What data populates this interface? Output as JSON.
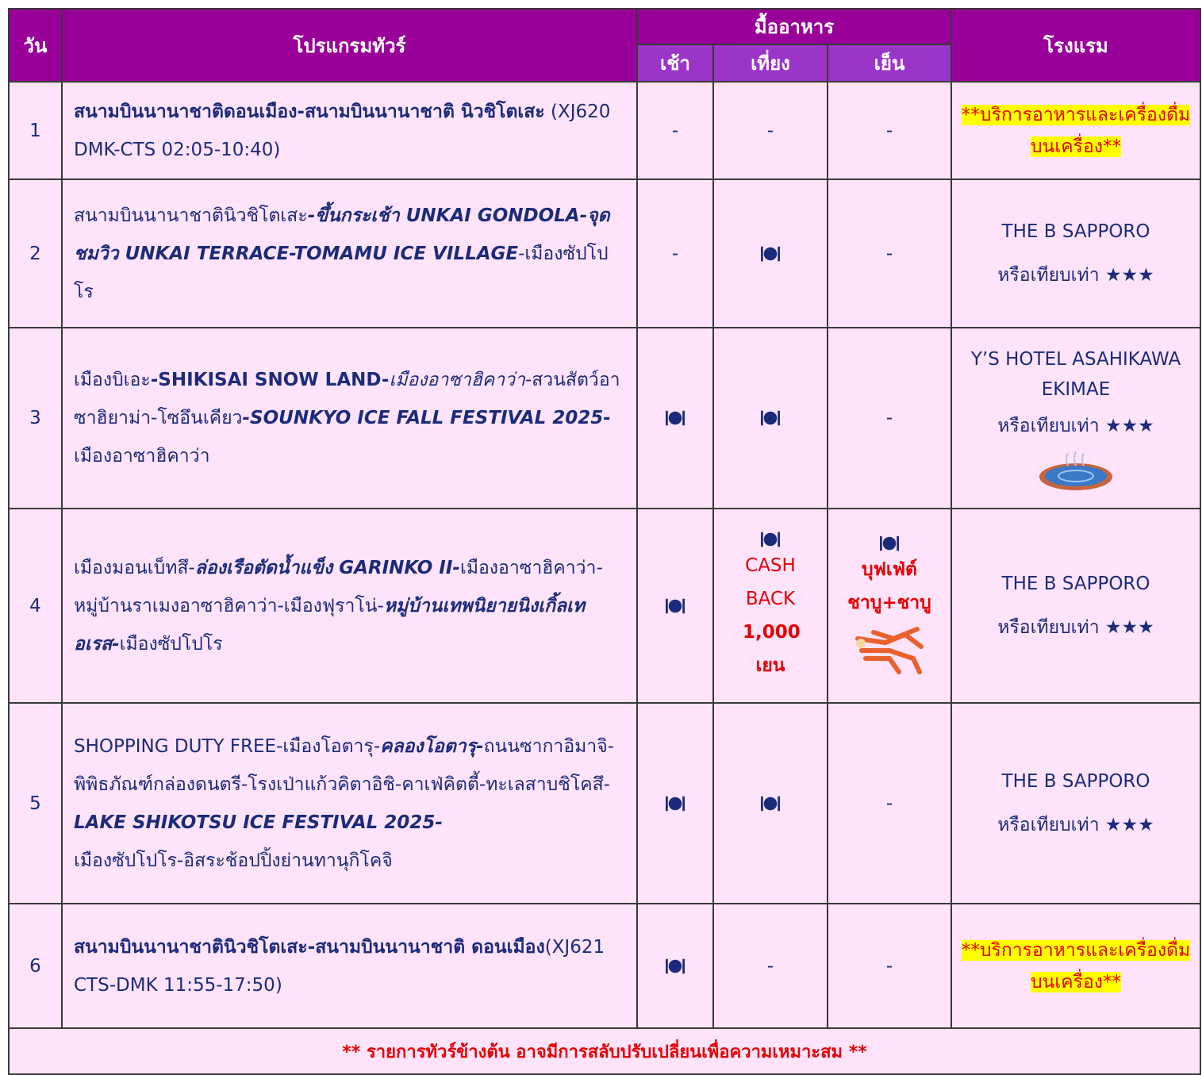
{
  "table": {
    "header": {
      "day": "วัน",
      "program": "โปรแกรมทัวร์",
      "meals": "มื้ออาหาร",
      "breakfast": "เช้า",
      "lunch": "เที่ยง",
      "dinner": "เย็น",
      "hotel": "โรงแรม"
    },
    "rows": [
      {
        "day": "1",
        "program": [
          "สนามบินนานาชาติดอนเมือง-สนามบินนานาชาติ นิวชิโตเสะ",
          " (XJ620 DMK-CTS 02:05-10:40)"
        ],
        "meals": {
          "breakfast": "-",
          "lunch": "-",
          "dinner": "-"
        },
        "hotel": [
          "**บริการอาหารและเครื่องดื่มบนเครื่อง**"
        ]
      },
      {
        "day": "2",
        "program": [
          "สนามบินนานาชาตินิวชิโตเสะ",
          "-ขึ้นกระเช้า UNKAI GONDOLA-จุดชมวิว UNKAI TERRACE-TOMAMU ICE VILLAGE",
          "-เมืองซัปโปโร"
        ],
        "meals": {
          "breakfast": "-",
          "dinner": "-"
        },
        "hotel": [
          "THE B SAPPORO",
          "หรือเทียบเท่า ★★★"
        ]
      },
      {
        "day": "3",
        "program": [
          "เมืองบิเอะ",
          "-SHIKISAI SNOW LAND-",
          "เมืองอาซาฮิคาว่า",
          "-สวนสัตว์อาซาฮิยาม่า-โซอึนเคียว",
          "-SOUNKYO ICE FALL FESTIVAL 2025-",
          "เมืองอาซาฮิคาว่า"
        ],
        "meals": {
          "dinner": "-"
        },
        "hotel": [
          "Y’S HOTEL ASAHIKAWA EKIMAE",
          "หรือเทียบเท่า ★★★"
        ]
      },
      {
        "day": "4",
        "program": [
          "เมืองมอนเบ็ทสึ-",
          "ล่องเรือตัดน้ำแข็ง GARINKO II-",
          "เมืองอาซาฮิคาว่า-หมู่บ้านราเมงอาซาฮิคาว่า-เมืองฟุราโน่-",
          "หมู่บ้านเทพนิยายนิงเกิ้ลเทอเรส-",
          "เมืองซัปโปโร"
        ],
        "meals": {
          "lunch": [
            "CASH BACK",
            "1,000 เยน"
          ],
          "dinner": [
            "บุฟเฟ่ต์ ชาบู+ชาบู"
          ]
        },
        "hotel": [
          "THE B SAPPORO",
          "หรือเทียบเท่า ★★★"
        ]
      },
      {
        "day": "5",
        "program": [
          "SHOPPING DUTY FREE-เมืองโอตารุ-",
          "คลองโอตารุ-",
          "ถนนซากาอิมาจิ-พิพิธภัณฑ์กล่องดนตรี-โรงเป่าแก้วคิตาอิชิ-คาเฟ่คิตตี้-ทะเลสาบชิโคสึ-",
          "LAKE SHIKOTSU ICE FESTIVAL 2025-",
          "เมืองซัปโปโร-อิสระช้อปปิ้งย่านทานุกิโคจิ"
        ],
        "meals": {
          "dinner": "-"
        },
        "hotel": [
          "THE B SAPPORO",
          "หรือเทียบเท่า ★★★"
        ]
      },
      {
        "day": "6",
        "program": [
          "สนามบินนานาชาตินิวชิโตเสะ-สนามบินนานาชาติ ดอนเมือง",
          "(XJ621 CTS-DMK 11:55-17:50)"
        ],
        "meals": {
          "lunch": "-",
          "dinner": "-"
        },
        "hotel": [
          "**บริการอาหารและเครื่องดื่มบนเครื่อง**"
        ]
      }
    ],
    "footer": "** รายการทัวร์ข้างต้น อาจมีการสลับปรับเปลี่ยนเพื่อความเหมาะสม **"
  }
}
